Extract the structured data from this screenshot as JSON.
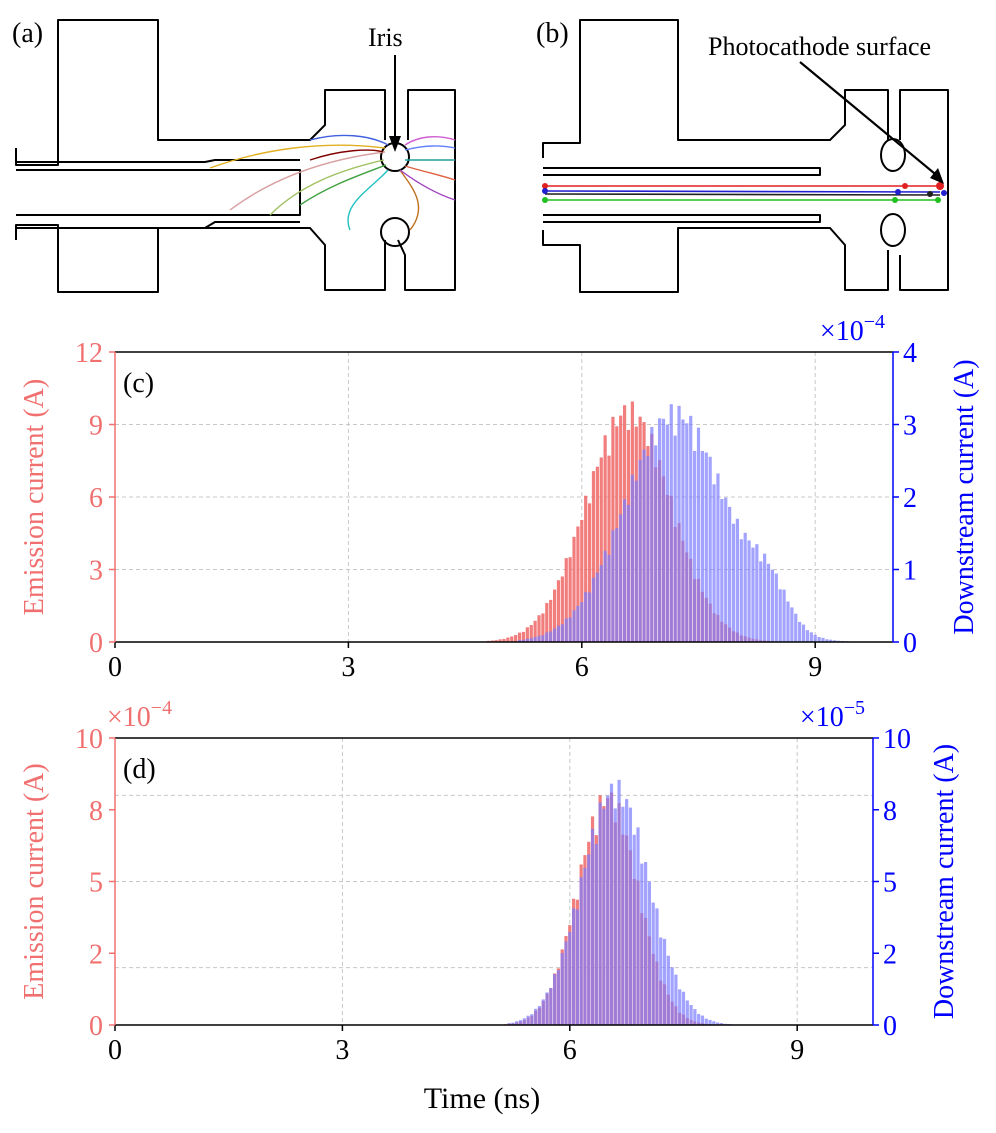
{
  "panels": {
    "a": {
      "label": "(a)",
      "annotation": "Iris"
    },
    "b": {
      "label": "(b)",
      "annotation": "Photocathode surface"
    }
  },
  "x_label": "Time (ns)",
  "colors": {
    "emission": "#f07070",
    "downstream": "#7c7cff",
    "left_axis": "#f07070",
    "right_axis": "#0000ff"
  },
  "chart_data": [
    {
      "type": "bar",
      "panel_label": "(c)",
      "x_ticks": [
        "0",
        "3",
        "6",
        "9"
      ],
      "xlim": [
        0,
        10
      ],
      "left_axis": {
        "label": "Emission current (A)",
        "ticks": [
          "0",
          "3",
          "6",
          "9",
          "12"
        ],
        "ylim": [
          0,
          12
        ],
        "scale": ""
      },
      "right_axis": {
        "label": "Downstream current (A)",
        "ticks": [
          "0",
          "1",
          "2",
          "3",
          "4"
        ],
        "ylim": [
          0,
          4
        ],
        "scale": "×10",
        "scale_exp": "−4"
      },
      "series": [
        {
          "name": "Emission current",
          "axis": "left",
          "shape": "gaussian",
          "center": 6.6,
          "sigma": 0.55,
          "peak": 10.0,
          "range": [
            4.8,
            8.4
          ],
          "step": 0.05
        },
        {
          "name": "Downstream current",
          "axis": "right",
          "shape": "gaussian",
          "center": 7.2,
          "sigma": 0.65,
          "peak": 3.3,
          "range": [
            5.2,
            9.6
          ],
          "step": 0.05,
          "secondary": {
            "center": 8.4,
            "sigma": 0.25,
            "peak": 0.55
          }
        }
      ]
    },
    {
      "type": "bar",
      "panel_label": "(d)",
      "x_ticks": [
        "0",
        "3",
        "6",
        "9"
      ],
      "xlim": [
        0,
        10
      ],
      "left_axis": {
        "label": "Emission current (A)",
        "ticks": [
          "0",
          "2",
          "5",
          "8",
          "10"
        ],
        "ylim": [
          0,
          10
        ],
        "scale": "×10",
        "scale_exp": "−4"
      },
      "right_axis": {
        "label": "Downstream current (A)",
        "ticks": [
          "0",
          "2",
          "5",
          "8",
          "10"
        ],
        "ylim": [
          0,
          10
        ],
        "scale": "×10",
        "scale_exp": "−5"
      },
      "series": [
        {
          "name": "Emission current",
          "axis": "left",
          "shape": "gaussian",
          "center": 6.5,
          "sigma": 0.4,
          "peak": 8.3,
          "range": [
            5.0,
            8.0
          ],
          "step": 0.05
        },
        {
          "name": "Downstream current",
          "axis": "right",
          "shape": "gaussian",
          "center": 6.6,
          "sigma": 0.45,
          "peak": 8.6,
          "range": [
            5.2,
            8.6
          ],
          "step": 0.05
        }
      ]
    }
  ]
}
